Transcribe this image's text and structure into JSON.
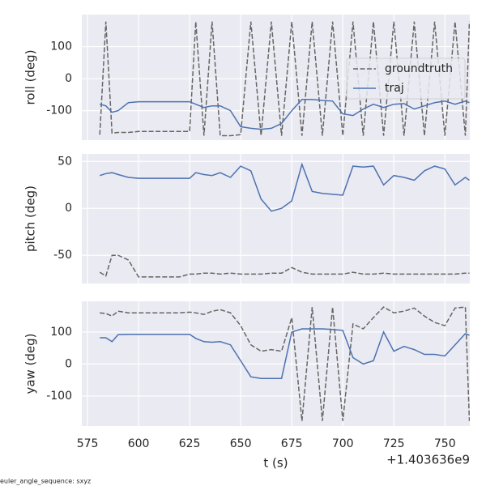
{
  "chart_data": [
    {
      "type": "line",
      "ylabel": "roll (deg)",
      "legend": "upper right",
      "grid": true,
      "xtick_labels": false,
      "x": [
        581,
        584,
        587,
        590,
        595,
        600,
        605,
        610,
        615,
        620,
        625,
        628,
        632,
        636,
        640,
        645,
        650,
        655,
        660,
        665,
        670,
        675,
        680,
        685,
        690,
        695,
        700,
        705,
        710,
        715,
        720,
        725,
        730,
        735,
        740,
        745,
        750,
        755,
        760,
        762
      ],
      "xlim": [
        572.2,
        762.2
      ],
      "xticks": [
        575,
        600,
        625,
        650,
        675,
        700,
        725,
        750
      ],
      "ylim": [
        -192,
        200
      ],
      "yticks": [
        -100,
        0,
        100
      ],
      "series": [
        {
          "name": "groundtruth",
          "color": "#666666",
          "dashed": true,
          "values": [
            -175,
            178,
            -170,
            -168,
            -168,
            -165,
            -165,
            -165,
            -165,
            -165,
            -165,
            178,
            -178,
            178,
            -178,
            -178,
            -175,
            178,
            -178,
            178,
            -178,
            178,
            -178,
            178,
            -178,
            178,
            -178,
            178,
            -178,
            178,
            -178,
            178,
            -178,
            178,
            -178,
            178,
            -178,
            178,
            -178,
            178
          ]
        },
        {
          "name": "traj",
          "color": "#4c72b0",
          "dashed": false,
          "values": [
            -80,
            -85,
            -105,
            -100,
            -75,
            -72,
            -72,
            -72,
            -72,
            -72,
            -72,
            -80,
            -90,
            -85,
            -85,
            -100,
            -150,
            -155,
            -158,
            -155,
            -140,
            -100,
            -65,
            -65,
            -68,
            -70,
            -110,
            -115,
            -95,
            -80,
            -90,
            -80,
            -78,
            -95,
            -85,
            -75,
            -70,
            -80,
            -70,
            -75
          ]
        }
      ]
    },
    {
      "type": "line",
      "ylabel": "pitch (deg)",
      "grid": true,
      "xtick_labels": false,
      "x": [
        581,
        584,
        587,
        590,
        595,
        600,
        605,
        610,
        615,
        620,
        625,
        628,
        632,
        636,
        640,
        645,
        650,
        655,
        660,
        665,
        670,
        675,
        680,
        685,
        690,
        695,
        700,
        705,
        710,
        715,
        720,
        725,
        730,
        735,
        740,
        745,
        750,
        755,
        760,
        762
      ],
      "xlim": [
        572.2,
        762.2
      ],
      "xticks": [
        575,
        600,
        625,
        650,
        675,
        700,
        725,
        750
      ],
      "ylim": [
        -80,
        58
      ],
      "yticks": [
        -50,
        0,
        50
      ],
      "series": [
        {
          "color": "#666666",
          "dashed": true,
          "values": [
            -68,
            -72,
            -50,
            -50,
            -55,
            -73,
            -73,
            -73,
            -73,
            -73,
            -70,
            -70,
            -69,
            -69,
            -70,
            -69,
            -70,
            -70,
            -70,
            -69,
            -69,
            -63,
            -68,
            -70,
            -70,
            -70,
            -70,
            -68,
            -70,
            -70,
            -69,
            -70,
            -70,
            -70,
            -70,
            -70,
            -70,
            -70,
            -69,
            -69
          ]
        },
        {
          "color": "#4c72b0",
          "dashed": false,
          "values": [
            35,
            37,
            38,
            36,
            33,
            32,
            32,
            32,
            32,
            32,
            32,
            38,
            36,
            35,
            38,
            33,
            45,
            40,
            10,
            -3,
            0,
            8,
            47,
            18,
            16,
            15,
            14,
            45,
            44,
            45,
            25,
            35,
            33,
            30,
            40,
            45,
            42,
            25,
            33,
            30
          ]
        }
      ]
    },
    {
      "type": "line",
      "ylabel": "yaw (deg)",
      "xlabel": "t (s)",
      "offset_text": "+1.403636e9",
      "annotation": "euler_angle_sequence: sxyz",
      "grid": true,
      "xtick_labels": true,
      "x": [
        581,
        584,
        587,
        590,
        595,
        600,
        605,
        610,
        615,
        620,
        625,
        628,
        632,
        636,
        640,
        645,
        650,
        655,
        660,
        665,
        670,
        675,
        680,
        685,
        690,
        695,
        700,
        705,
        710,
        715,
        720,
        725,
        730,
        735,
        740,
        745,
        750,
        755,
        760,
        762
      ],
      "xlim": [
        572.2,
        762.2
      ],
      "xticks": [
        575,
        600,
        625,
        650,
        675,
        700,
        725,
        750
      ],
      "ylim": [
        -194,
        196
      ],
      "yticks": [
        -100,
        0,
        100
      ],
      "series": [
        {
          "color": "#666666",
          "dashed": true,
          "values": [
            160,
            158,
            150,
            165,
            160,
            160,
            160,
            160,
            160,
            160,
            162,
            160,
            155,
            165,
            170,
            160,
            120,
            60,
            40,
            45,
            40,
            145,
            -178,
            178,
            -178,
            178,
            -178,
            125,
            110,
            145,
            178,
            160,
            165,
            175,
            150,
            130,
            120,
            175,
            178,
            -178
          ]
        },
        {
          "color": "#4c72b0",
          "dashed": false,
          "values": [
            82,
            82,
            70,
            92,
            93,
            93,
            93,
            93,
            93,
            93,
            93,
            80,
            70,
            68,
            70,
            60,
            10,
            -40,
            -45,
            -45,
            -45,
            100,
            110,
            110,
            110,
            108,
            105,
            20,
            0,
            10,
            100,
            40,
            55,
            45,
            30,
            30,
            25,
            60,
            95,
            90
          ]
        }
      ]
    }
  ]
}
